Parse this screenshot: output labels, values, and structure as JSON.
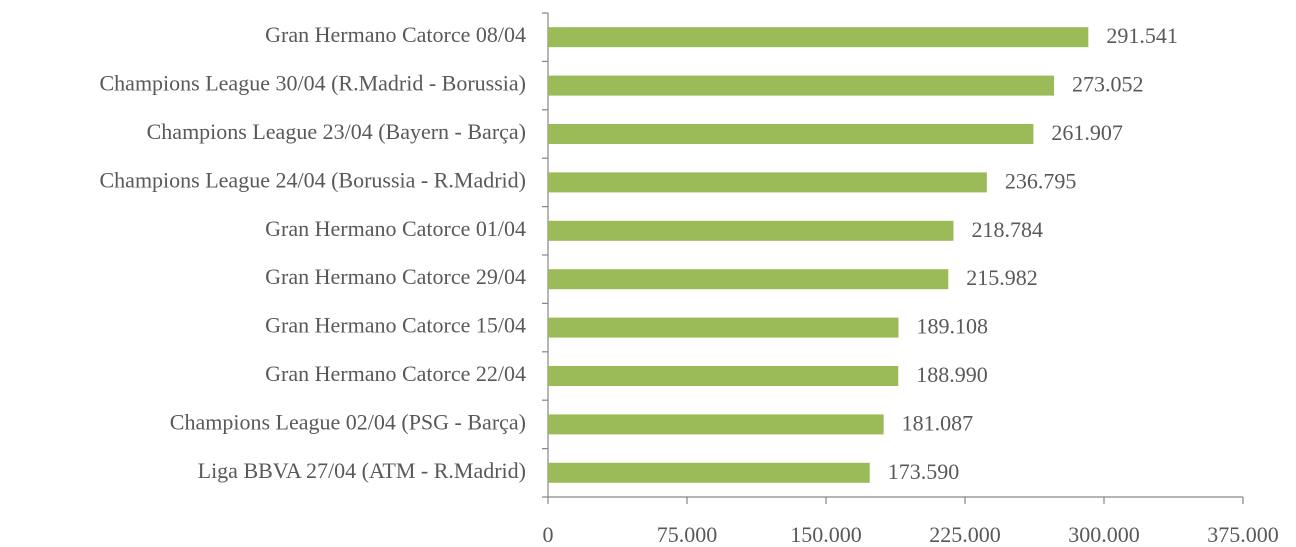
{
  "chart_data": {
    "type": "bar",
    "orientation": "horizontal",
    "categories": [
      "Gran Hermano Catorce 08/04",
      "Champions League 30/04 (R.Madrid - Borussia)",
      "Champions League 23/04 (Bayern - Barça)",
      "Champions League 24/04 (Borussia - R.Madrid)",
      "Gran Hermano Catorce 01/04",
      "Gran Hermano Catorce 29/04",
      "Gran Hermano Catorce 15/04",
      "Gran Hermano Catorce 22/04",
      "Champions League 02/04 (PSG - Barça)",
      "Liga BBVA 27/04 (ATM - R.Madrid)"
    ],
    "values": [
      291541,
      273052,
      261907,
      236795,
      218784,
      215982,
      189108,
      188990,
      181087,
      173590
    ],
    "value_labels": [
      "291.541",
      "273.052",
      "261.907",
      "236.795",
      "218.784",
      "215.982",
      "189.108",
      "188.990",
      "181.087",
      "173.590"
    ],
    "color": "#9bbb59",
    "xlim": [
      0,
      375000
    ],
    "xticks": [
      0,
      {
        "value": 75000,
        "label": "75.000"
      },
      {
        "value": 150000,
        "label": "150.000"
      },
      {
        "value": 225000,
        "label": "225.000"
      },
      {
        "value": 300000,
        "label": "300.000"
      },
      {
        "value": 375000,
        "label": "375.000"
      }
    ],
    "grid": false
  }
}
